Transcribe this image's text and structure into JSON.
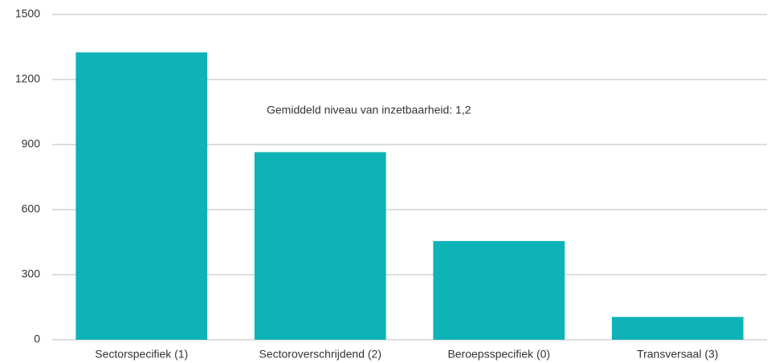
{
  "chart_data": {
    "type": "bar",
    "annotation": "Gemiddeld niveau van inzetbaarheid: 1,2",
    "categories": [
      "Sectorspecifiek (1)",
      "Sectoroverschrijdend (2)",
      "Beroepsspecifiek (0)",
      "Transversaal (3)"
    ],
    "values": [
      1325,
      865,
      455,
      105
    ],
    "color": "#0db3b6",
    "ylim": [
      0,
      1500
    ],
    "yticks": [
      0,
      300,
      600,
      900,
      1200,
      1500
    ],
    "grid": true
  }
}
